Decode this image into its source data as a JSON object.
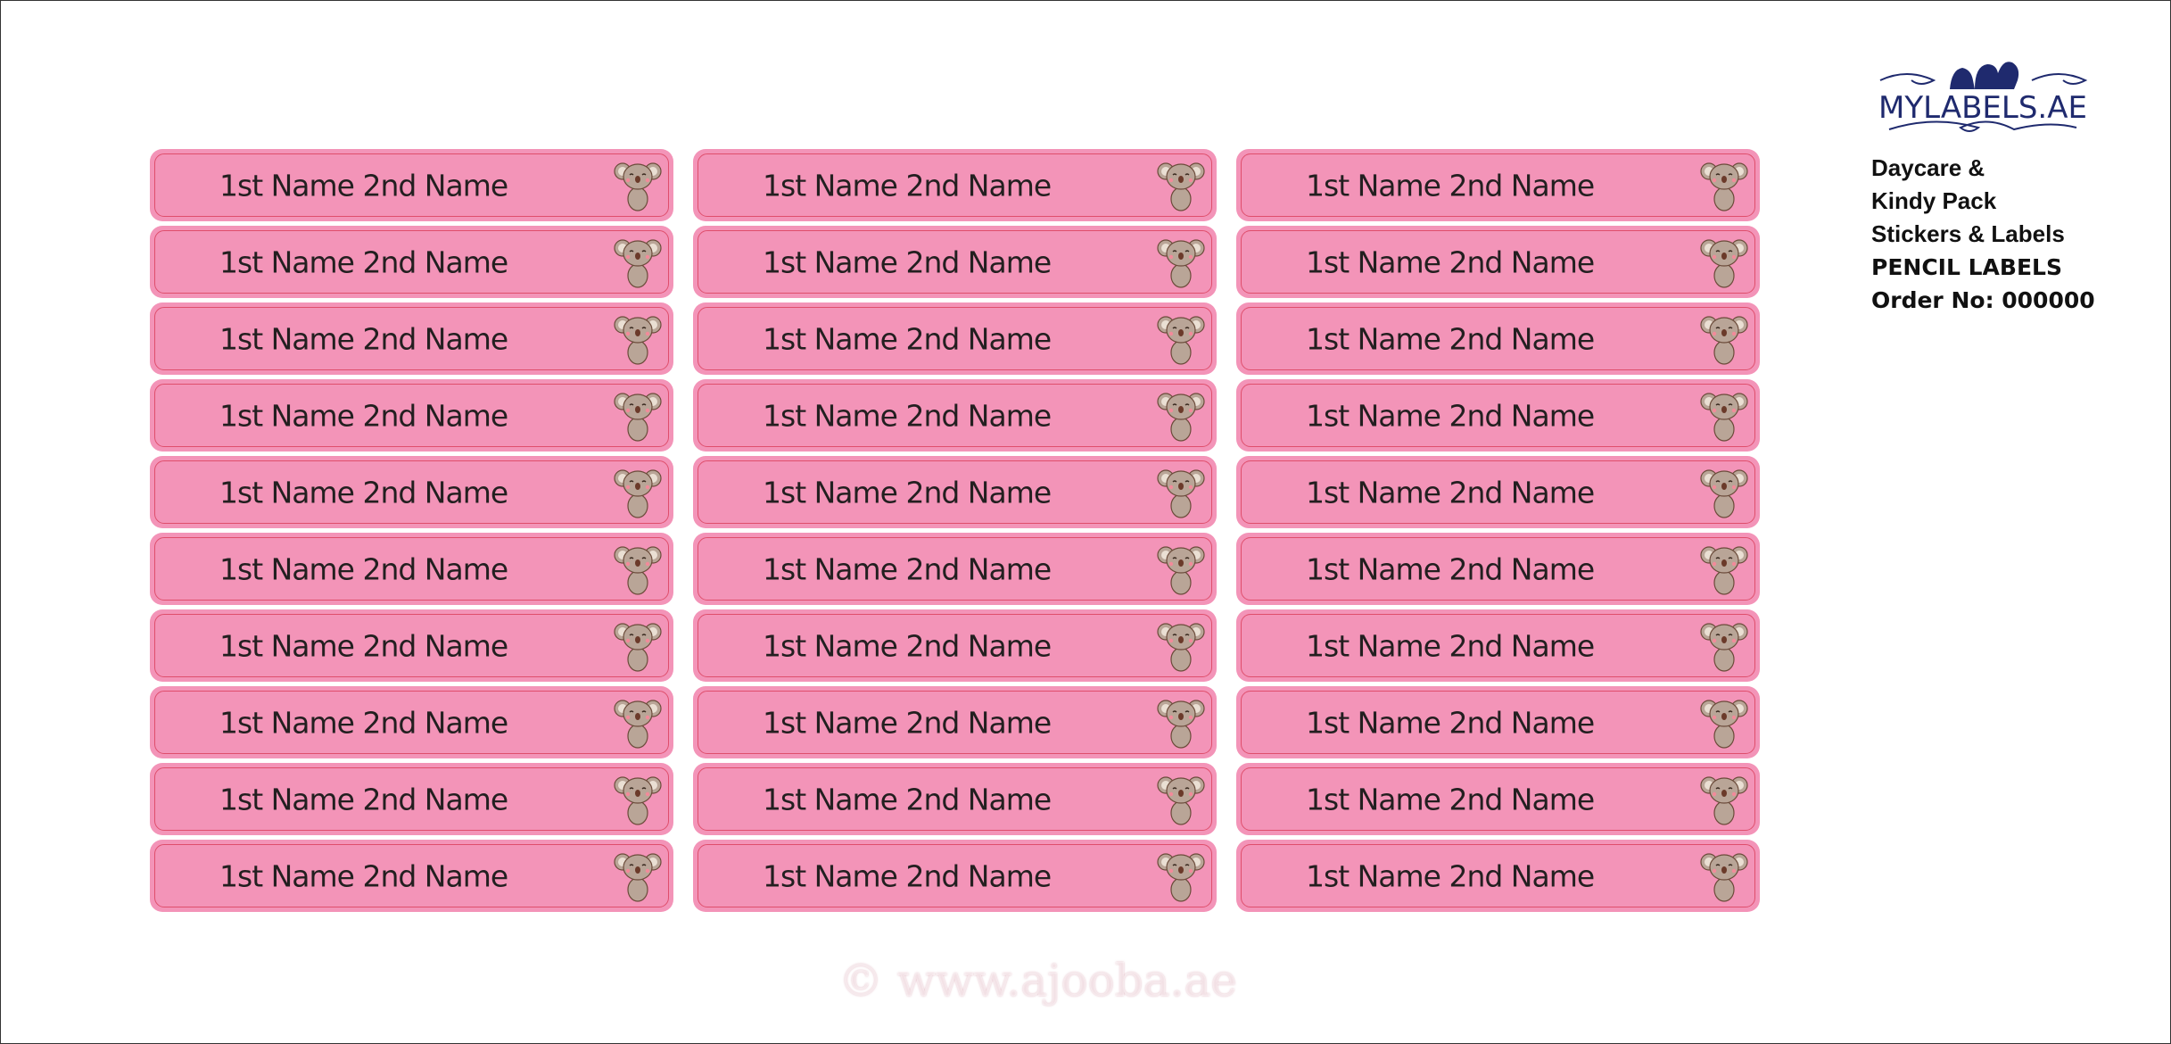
{
  "labels": {
    "count_columns": 3,
    "count_rows": 10,
    "items": [
      "1st Name 2nd Name",
      "1st Name 2nd Name",
      "1st Name 2nd Name",
      "1st Name 2nd Name",
      "1st Name 2nd Name",
      "1st Name 2nd Name",
      "1st Name 2nd Name",
      "1st Name 2nd Name",
      "1st Name 2nd Name",
      "1st Name 2nd Name",
      "1st Name 2nd Name",
      "1st Name 2nd Name",
      "1st Name 2nd Name",
      "1st Name 2nd Name",
      "1st Name 2nd Name",
      "1st Name 2nd Name",
      "1st Name 2nd Name",
      "1st Name 2nd Name",
      "1st Name 2nd Name",
      "1st Name 2nd Name",
      "1st Name 2nd Name",
      "1st Name 2nd Name",
      "1st Name 2nd Name",
      "1st Name 2nd Name",
      "1st Name 2nd Name",
      "1st Name 2nd Name",
      "1st Name 2nd Name",
      "1st Name 2nd Name",
      "1st Name 2nd Name",
      "1st Name 2nd Name"
    ],
    "icon": "koala-icon",
    "colors": {
      "fill": "#f394b8",
      "border": "#df4e6c",
      "text": "#231f20"
    }
  },
  "brand": {
    "logo_text": "MYLABELS.AE",
    "color": "#1f2a6e"
  },
  "info": {
    "line1": "Daycare &",
    "line2": "Kindy Pack",
    "line3": "Stickers & Labels",
    "product": "PENCIL LABELS",
    "order": "Order No: 000000"
  },
  "watermark": "© www.ajooba.ae"
}
